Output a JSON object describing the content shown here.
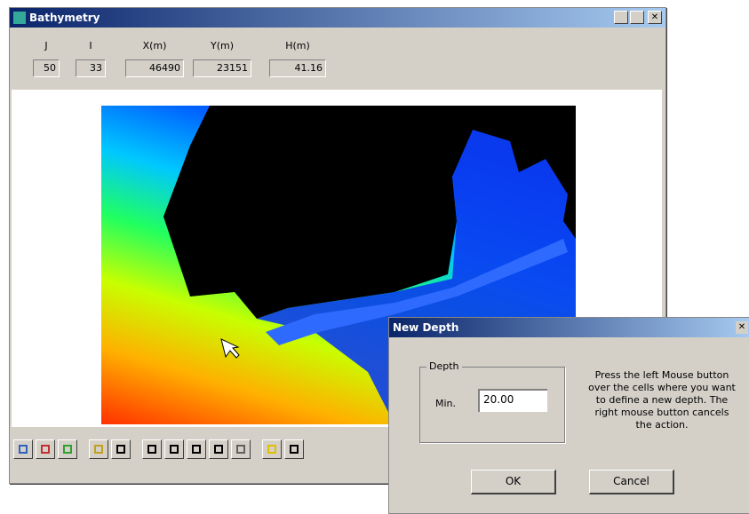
{
  "window": {
    "title": "Bathymetry",
    "fields": [
      {
        "label": "J",
        "value": "50"
      },
      {
        "label": "I",
        "value": "33"
      },
      {
        "label": "X(m)",
        "value": "46490"
      },
      {
        "label": "Y(m)",
        "value": "23151"
      },
      {
        "label": "H(m)",
        "value": "41.16"
      }
    ]
  },
  "dialog": {
    "title": "New Depth",
    "group": "Depth",
    "field_label": "Min.",
    "field_value": "20.00",
    "instructions": "Press the left Mouse button over the cells where you want to define a new depth. The right mouse button cancels the action.",
    "ok": "OK",
    "cancel": "Cancel"
  }
}
